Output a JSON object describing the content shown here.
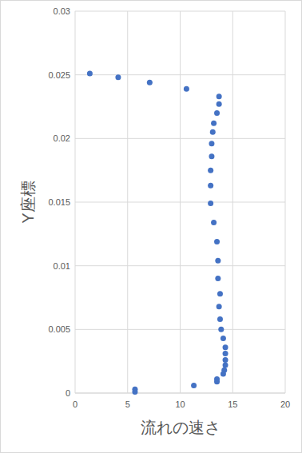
{
  "chart_data": {
    "type": "scatter",
    "x_label": "流れの速さ",
    "y_label": "Y座標",
    "color": "#4472c4",
    "marker": "circle",
    "grid": true,
    "x": [
      1.4,
      4.1,
      7.1,
      10.6,
      13.7,
      13.7,
      13.5,
      13.2,
      13.1,
      13.0,
      13.0,
      12.9,
      12.9,
      12.9,
      13.2,
      13.5,
      13.6,
      13.6,
      13.8,
      13.7,
      13.8,
      13.9,
      14.1,
      14.3,
      14.3,
      14.3,
      14.3,
      14.2,
      14.1,
      13.5,
      13.5,
      11.3,
      5.7,
      5.7
    ],
    "values": [
      0.0251,
      0.0248,
      0.0244,
      0.0239,
      0.0233,
      0.0227,
      0.022,
      0.0212,
      0.0205,
      0.0196,
      0.0186,
      0.0175,
      0.0163,
      0.0149,
      0.0134,
      0.0119,
      0.0104,
      0.009,
      0.0078,
      0.0068,
      0.0058,
      0.005,
      0.0043,
      0.0036,
      0.0031,
      0.0026,
      0.0022,
      0.0018,
      0.0015,
      0.0011,
      0.0009,
      0.0006,
      0.0003,
      0.0001
    ],
    "xlim": [
      0,
      20
    ],
    "xticks": [
      0,
      5,
      10,
      15,
      20
    ],
    "ylim": [
      0,
      0.03
    ],
    "yticks": [
      0,
      0.005,
      0.01,
      0.015,
      0.02,
      0.025,
      0.03
    ]
  }
}
